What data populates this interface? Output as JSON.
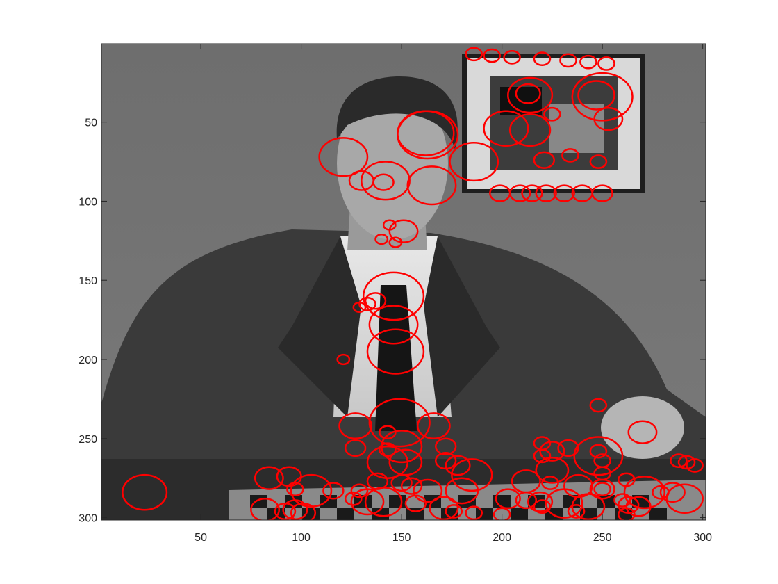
{
  "chart_data": {
    "type": "scatter",
    "title": "",
    "xlabel": "",
    "ylabel": "",
    "xlim": [
      0.5,
      301.5
    ],
    "ylim": [
      0.5,
      301.5
    ],
    "y_reversed": true,
    "grid": false,
    "x_ticks": [
      50,
      100,
      150,
      200,
      250,
      300
    ],
    "y_ticks": [
      50,
      100,
      150,
      200,
      250,
      300
    ],
    "image": "grayscale photograph of a man in a suit seated at a table with a chessboard, framed picture on wall behind",
    "marker": "circle",
    "marker_color": "#ff0000",
    "circles": [
      {
        "x": 186,
        "y": 7,
        "r": 4
      },
      {
        "x": 195,
        "y": 8,
        "r": 4
      },
      {
        "x": 205,
        "y": 9,
        "r": 4
      },
      {
        "x": 220,
        "y": 10,
        "r": 4
      },
      {
        "x": 233,
        "y": 11,
        "r": 4
      },
      {
        "x": 243,
        "y": 12,
        "r": 4
      },
      {
        "x": 252,
        "y": 13,
        "r": 4
      },
      {
        "x": 213,
        "y": 32,
        "r": 6
      },
      {
        "x": 214,
        "y": 33,
        "r": 11
      },
      {
        "x": 247,
        "y": 33,
        "r": 9
      },
      {
        "x": 250,
        "y": 34,
        "r": 15
      },
      {
        "x": 225,
        "y": 45,
        "r": 4
      },
      {
        "x": 253,
        "y": 48,
        "r": 7
      },
      {
        "x": 162,
        "y": 57,
        "r": 14
      },
      {
        "x": 163,
        "y": 58,
        "r": 15
      },
      {
        "x": 202,
        "y": 54,
        "r": 11
      },
      {
        "x": 214,
        "y": 55,
        "r": 10
      },
      {
        "x": 121,
        "y": 72,
        "r": 12
      },
      {
        "x": 186,
        "y": 75,
        "r": 12
      },
      {
        "x": 221,
        "y": 74,
        "r": 5
      },
      {
        "x": 234,
        "y": 71,
        "r": 4
      },
      {
        "x": 248,
        "y": 75,
        "r": 4
      },
      {
        "x": 130,
        "y": 87,
        "r": 6
      },
      {
        "x": 142,
        "y": 87,
        "r": 12
      },
      {
        "x": 141,
        "y": 88,
        "r": 5
      },
      {
        "x": 165,
        "y": 90,
        "r": 12
      },
      {
        "x": 199,
        "y": 95,
        "r": 5
      },
      {
        "x": 209,
        "y": 95,
        "r": 5
      },
      {
        "x": 215,
        "y": 95,
        "r": 5
      },
      {
        "x": 222,
        "y": 95,
        "r": 5
      },
      {
        "x": 231,
        "y": 95,
        "r": 5
      },
      {
        "x": 240,
        "y": 95,
        "r": 5
      },
      {
        "x": 250,
        "y": 95,
        "r": 5
      },
      {
        "x": 144,
        "y": 115,
        "r": 3
      },
      {
        "x": 151,
        "y": 119,
        "r": 7
      },
      {
        "x": 140,
        "y": 124,
        "r": 3
      },
      {
        "x": 147,
        "y": 126,
        "r": 3
      },
      {
        "x": 146,
        "y": 160,
        "r": 15
      },
      {
        "x": 129,
        "y": 167,
        "r": 3
      },
      {
        "x": 133,
        "y": 165,
        "r": 4
      },
      {
        "x": 137,
        "y": 163,
        "r": 5
      },
      {
        "x": 146,
        "y": 178,
        "r": 12
      },
      {
        "x": 147,
        "y": 195,
        "r": 14
      },
      {
        "x": 121,
        "y": 200,
        "r": 3
      },
      {
        "x": 149,
        "y": 240,
        "r": 15
      },
      {
        "x": 127,
        "y": 242,
        "r": 8
      },
      {
        "x": 166,
        "y": 242,
        "r": 8
      },
      {
        "x": 143,
        "y": 246,
        "r": 4
      },
      {
        "x": 150,
        "y": 255,
        "r": 10
      },
      {
        "x": 143,
        "y": 257,
        "r": 4
      },
      {
        "x": 127,
        "y": 256,
        "r": 5
      },
      {
        "x": 172,
        "y": 255,
        "r": 5
      },
      {
        "x": 248,
        "y": 258,
        "r": 4
      },
      {
        "x": 270,
        "y": 246,
        "r": 7
      },
      {
        "x": 248,
        "y": 229,
        "r": 4
      },
      {
        "x": 220,
        "y": 253,
        "r": 4
      },
      {
        "x": 225,
        "y": 258,
        "r": 6
      },
      {
        "x": 233,
        "y": 256,
        "r": 5
      },
      {
        "x": 220,
        "y": 261,
        "r": 4
      },
      {
        "x": 248,
        "y": 261,
        "r": 12
      },
      {
        "x": 143,
        "y": 265,
        "r": 10
      },
      {
        "x": 152,
        "y": 265,
        "r": 8
      },
      {
        "x": 172,
        "y": 264,
        "r": 5
      },
      {
        "x": 178,
        "y": 267,
        "r": 6
      },
      {
        "x": 185,
        "y": 273,
        "r": 10
      },
      {
        "x": 225,
        "y": 270,
        "r": 8
      },
      {
        "x": 250,
        "y": 264,
        "r": 4
      },
      {
        "x": 250,
        "y": 272,
        "r": 4
      },
      {
        "x": 22,
        "y": 284,
        "r": 11
      },
      {
        "x": 84,
        "y": 275,
        "r": 7
      },
      {
        "x": 94,
        "y": 274,
        "r": 6
      },
      {
        "x": 105,
        "y": 283,
        "r": 10
      },
      {
        "x": 97,
        "y": 282,
        "r": 4
      },
      {
        "x": 116,
        "y": 283,
        "r": 5
      },
      {
        "x": 129,
        "y": 283,
        "r": 4
      },
      {
        "x": 138,
        "y": 277,
        "r": 5
      },
      {
        "x": 150,
        "y": 278,
        "r": 5
      },
      {
        "x": 155,
        "y": 280,
        "r": 5
      },
      {
        "x": 163,
        "y": 283,
        "r": 7
      },
      {
        "x": 180,
        "y": 283,
        "r": 8
      },
      {
        "x": 212,
        "y": 277,
        "r": 7
      },
      {
        "x": 224,
        "y": 278,
        "r": 4
      },
      {
        "x": 238,
        "y": 280,
        "r": 7
      },
      {
        "x": 250,
        "y": 282,
        "r": 6
      },
      {
        "x": 250,
        "y": 282,
        "r": 4
      },
      {
        "x": 262,
        "y": 276,
        "r": 4
      },
      {
        "x": 271,
        "y": 284,
        "r": 10
      },
      {
        "x": 288,
        "y": 264,
        "r": 4
      },
      {
        "x": 292,
        "y": 265,
        "r": 4
      },
      {
        "x": 296,
        "y": 267,
        "r": 4
      },
      {
        "x": 279,
        "y": 284,
        "r": 4
      },
      {
        "x": 285,
        "y": 284,
        "r": 6
      },
      {
        "x": 291,
        "y": 288,
        "r": 9
      },
      {
        "x": 126,
        "y": 288,
        "r": 4
      },
      {
        "x": 133,
        "y": 290,
        "r": 8
      },
      {
        "x": 141,
        "y": 290,
        "r": 9
      },
      {
        "x": 157,
        "y": 291,
        "r": 5
      },
      {
        "x": 203,
        "y": 288,
        "r": 6
      },
      {
        "x": 212,
        "y": 289,
        "r": 5
      },
      {
        "x": 219,
        "y": 290,
        "r": 6
      },
      {
        "x": 220,
        "y": 293,
        "r": 4
      },
      {
        "x": 231,
        "y": 291,
        "r": 9
      },
      {
        "x": 243,
        "y": 293,
        "r": 8
      },
      {
        "x": 260,
        "y": 289,
        "r": 4
      },
      {
        "x": 263,
        "y": 292,
        "r": 5
      },
      {
        "x": 268,
        "y": 293,
        "r": 6
      },
      {
        "x": 82,
        "y": 295,
        "r": 7
      },
      {
        "x": 92,
        "y": 296,
        "r": 5
      },
      {
        "x": 97,
        "y": 295,
        "r": 6
      },
      {
        "x": 101,
        "y": 297,
        "r": 6
      },
      {
        "x": 171,
        "y": 294,
        "r": 7
      },
      {
        "x": 176,
        "y": 296,
        "r": 4
      },
      {
        "x": 186,
        "y": 297,
        "r": 4
      },
      {
        "x": 200,
        "y": 298,
        "r": 4
      },
      {
        "x": 237,
        "y": 296,
        "r": 4
      },
      {
        "x": 262,
        "y": 298,
        "r": 4
      }
    ]
  }
}
